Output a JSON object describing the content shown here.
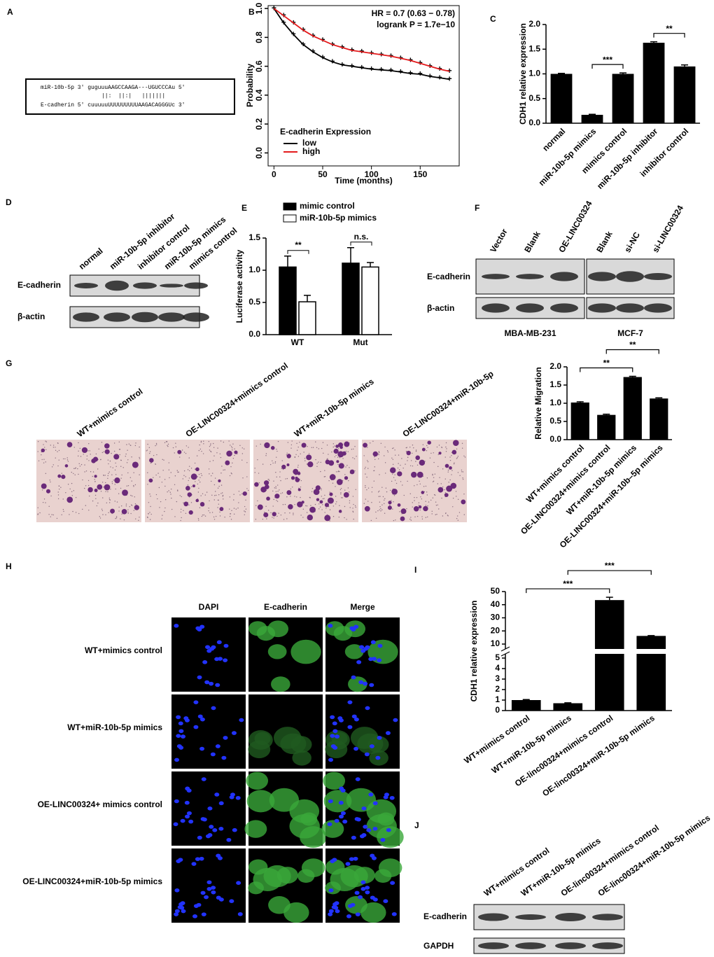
{
  "panel_labels": [
    "A",
    "B",
    "C",
    "D",
    "E",
    "F",
    "G",
    "H",
    "I",
    "J"
  ],
  "panel_a": {
    "lines": [
      "miR-10b-5p 3' guguuuAAGCCAAGA---UGUCCCAu 5'",
      "||:  ||:|   |||||||",
      "E-cadherin 5' cuuuuuUUUUUUUUUAAGACAGGGUc 3'"
    ]
  },
  "chart_data": [
    {
      "type": "line",
      "title": "B",
      "xlabel": "Time (months)",
      "ylabel": "Probability",
      "annotations": [
        "HR = 0.7 (0.63 − 0.78)",
        "logrank P = 1.7e−10"
      ],
      "legend_title": "E-cadherin Expression",
      "x": [
        0,
        10,
        20,
        30,
        40,
        50,
        60,
        70,
        80,
        90,
        100,
        110,
        120,
        130,
        140,
        150,
        160,
        170,
        180
      ],
      "series": [
        {
          "name": "low",
          "color": "#000000",
          "values": [
            1.0,
            0.9,
            0.82,
            0.75,
            0.7,
            0.66,
            0.63,
            0.61,
            0.6,
            0.59,
            0.58,
            0.575,
            0.57,
            0.56,
            0.55,
            0.545,
            0.53,
            0.52,
            0.51
          ]
        },
        {
          "name": "high",
          "color": "#e41a1c",
          "values": [
            1.0,
            0.95,
            0.9,
            0.85,
            0.81,
            0.78,
            0.75,
            0.73,
            0.71,
            0.7,
            0.69,
            0.68,
            0.67,
            0.655,
            0.64,
            0.62,
            0.6,
            0.58,
            0.565
          ]
        }
      ],
      "xlim": [
        -6,
        190
      ],
      "xticks": [
        0,
        50,
        100,
        150
      ],
      "ylim": [
        -0.09,
        1.02
      ],
      "yticks": [
        {
          "value": 0,
          "label": "0.0"
        },
        {
          "value": 0.2,
          "label": "0.2"
        },
        {
          "value": 0.4,
          "label": "0.4"
        },
        {
          "value": 0.6,
          "label": "0.6"
        },
        {
          "value": 0.8,
          "label": "0.8"
        },
        {
          "value": 1,
          "label": "1.0"
        }
      ]
    },
    {
      "type": "bar",
      "ylabel": "CDH1 relative expression",
      "categories": [
        "normal",
        "miR-10b-5p mimics",
        "mimics control",
        "miR-10b-5p inhibitor",
        "inhibitor control"
      ],
      "values": [
        1.0,
        0.17,
        1.0,
        1.63,
        1.15
      ],
      "errors": [
        0.01,
        0.01,
        0.02,
        0.02,
        0.03
      ],
      "color": "#000000",
      "ylim": [
        0,
        2
      ],
      "yticks": [
        {
          "value": 0,
          "label": "0.0"
        },
        {
          "value": 0.5,
          "label": "0.5"
        },
        {
          "value": 1,
          "label": "1.0"
        },
        {
          "value": 1.5,
          "label": "1.5"
        },
        {
          "value": 2,
          "label": "2.0"
        }
      ],
      "comparisons": [
        {
          "groups": [
            1,
            2
          ],
          "label": "***"
        },
        {
          "groups": [
            3,
            4
          ],
          "label": "**"
        }
      ]
    },
    {
      "type": "grouped_bar",
      "ylabel": "Luciferase activity",
      "categories": [
        "WT",
        "Mut"
      ],
      "series": [
        {
          "name": "mimic control",
          "color": "#000000",
          "values": [
            1.05,
            1.11
          ],
          "errors": [
            0.17,
            0.24
          ]
        },
        {
          "name": "miR-10b-5p mimics",
          "color": "#ffffff",
          "values": [
            0.51,
            1.05
          ],
          "errors": [
            0.1,
            0.07
          ]
        }
      ],
      "ylim": [
        0,
        1.5
      ],
      "yticks": [
        {
          "value": 0,
          "label": "0.0"
        },
        {
          "value": 0.5,
          "label": "0.5"
        },
        {
          "value": 1,
          "label": "1.0"
        },
        {
          "value": 1.5,
          "label": "1.5"
        }
      ],
      "comparisons": [
        {
          "group": 0,
          "label": "**"
        },
        {
          "group": 1,
          "label": "n.s."
        }
      ]
    },
    {
      "type": "bar",
      "ylabel": "Relative Migration",
      "categories": [
        "WT+mimics control",
        "OE-LINC00324+mimics control",
        "WT+miR-10b-5p mimics",
        "OE-LINC00324+miR-10b–5p mimics"
      ],
      "values": [
        1.02,
        0.68,
        1.72,
        1.13
      ],
      "errors": [
        0.02,
        0.02,
        0.02,
        0.02
      ],
      "color": "#000000",
      "ylim": [
        0,
        2
      ],
      "yticks": [
        {
          "value": 0,
          "label": "0.0"
        },
        {
          "value": 0.5,
          "label": "0.5"
        },
        {
          "value": 1,
          "label": "1.0"
        },
        {
          "value": 1.5,
          "label": "1.5"
        },
        {
          "value": 2,
          "label": "2.0"
        }
      ],
      "comparisons": [
        {
          "groups": [
            0,
            2
          ],
          "label": "**"
        },
        {
          "groups": [
            1,
            3
          ],
          "label": "**"
        }
      ]
    },
    {
      "type": "bar",
      "ylabel": "CDH1 relative expression",
      "categories": [
        "WT+mimics control",
        "WT+miR-10b-5p mimics",
        "OE-linc00324+mimics control",
        "OE-linc00324+miR-10b-5p mimics"
      ],
      "values": [
        1.0,
        0.7,
        43.5,
        16.2
      ],
      "errors": [
        0.05,
        0.04,
        2.2,
        0.3
      ],
      "color": "#000000",
      "ylim": [
        0,
        50
      ],
      "y_break": [
        5,
        10
      ],
      "yticks": [
        0,
        1,
        2,
        3,
        4,
        5,
        10,
        20,
        30,
        40,
        50
      ],
      "comparisons": [
        {
          "groups": [
            0,
            2
          ],
          "label": "***"
        },
        {
          "groups": [
            1,
            3
          ],
          "label": "***"
        }
      ]
    }
  ],
  "panel_d": {
    "lanes": [
      "normal",
      "miR-10b-5p inhibitor",
      "inhibitor control",
      "miR-10b-5p mimics",
      "mimics control"
    ],
    "rows": [
      "E-cadherin",
      "β-actin"
    ]
  },
  "panel_f": {
    "rows": [
      "E-cadherin",
      "β-actin"
    ],
    "blots": [
      {
        "cell_line": "MBA-MB-231",
        "lanes": [
          "Vector",
          "Blank",
          "OE-LINC00324"
        ]
      },
      {
        "cell_line": "MCF-7",
        "lanes": [
          "Blank",
          "si-NC",
          "si-LINC00324"
        ]
      }
    ]
  },
  "panel_g": {
    "images": [
      "WT+mimics control",
      "OE-LINC00324+mimics control",
      "WT+miR-10b-5p mimics",
      "OE-LINC00324+miR-10b-5p"
    ]
  },
  "panel_h": {
    "columns": [
      "DAPI",
      "E-cadherin",
      "Merge"
    ],
    "rows": [
      "WT+mimics control",
      "WT+miR-10b-5p mimics",
      "OE-LINC00324+ mimics control",
      "OE-LINC00324+miR-10b-5p mimics"
    ]
  },
  "panel_j": {
    "lanes": [
      "WT+mimics control",
      "WT+miR-10b-5p mimics",
      "OE-linc00324+mimics control",
      "OE-linc00324+miR-10b-5p mimics"
    ],
    "rows": [
      "E-cadherin",
      "GAPDH"
    ]
  }
}
